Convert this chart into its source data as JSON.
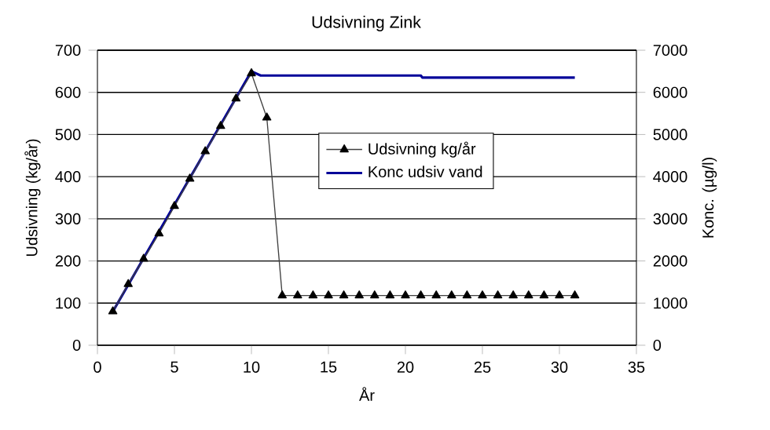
{
  "chart_data": {
    "type": "line",
    "title": "Udsivning Zink",
    "xlabel": "År",
    "ylabel": "Udsivning (kg/år)",
    "y2label": "Konc. (µg/l)",
    "series": [
      {
        "name": "Udsivning kg/år",
        "color": "#404040",
        "marker": "triangle",
        "x": [
          1,
          2,
          3,
          4,
          5,
          6,
          7,
          8,
          9,
          10,
          11,
          12,
          13,
          14,
          15,
          16,
          17,
          18,
          19,
          20,
          21,
          22,
          23,
          24,
          25,
          26,
          27,
          28,
          29,
          30,
          31
        ],
        "values": [
          80,
          145,
          205,
          265,
          330,
          395,
          460,
          520,
          585,
          645,
          540,
          118,
          118,
          118,
          118,
          118,
          118,
          118,
          118,
          118,
          118,
          118,
          118,
          118,
          118,
          118,
          118,
          118,
          118,
          118,
          118
        ]
      },
      {
        "name": "Konc udsiv vand",
        "color": "#000099",
        "marker": "none",
        "axis": "y2",
        "x": [
          1,
          10,
          10.6,
          21,
          21.1,
          31
        ],
        "values": [
          800,
          6500,
          6400,
          6400,
          6350,
          6350
        ]
      }
    ],
    "xlim": [
      0,
      35
    ],
    "xticks": [
      0,
      5,
      10,
      15,
      20,
      25,
      30,
      35
    ],
    "ylim": [
      0,
      700
    ],
    "yticks": [
      0,
      100,
      200,
      300,
      400,
      500,
      600,
      700
    ],
    "y2lim": [
      0,
      7000
    ],
    "y2ticks": [
      0,
      1000,
      2000,
      3000,
      4000,
      5000,
      6000,
      7000
    ],
    "grid": "y",
    "legend": "right"
  }
}
